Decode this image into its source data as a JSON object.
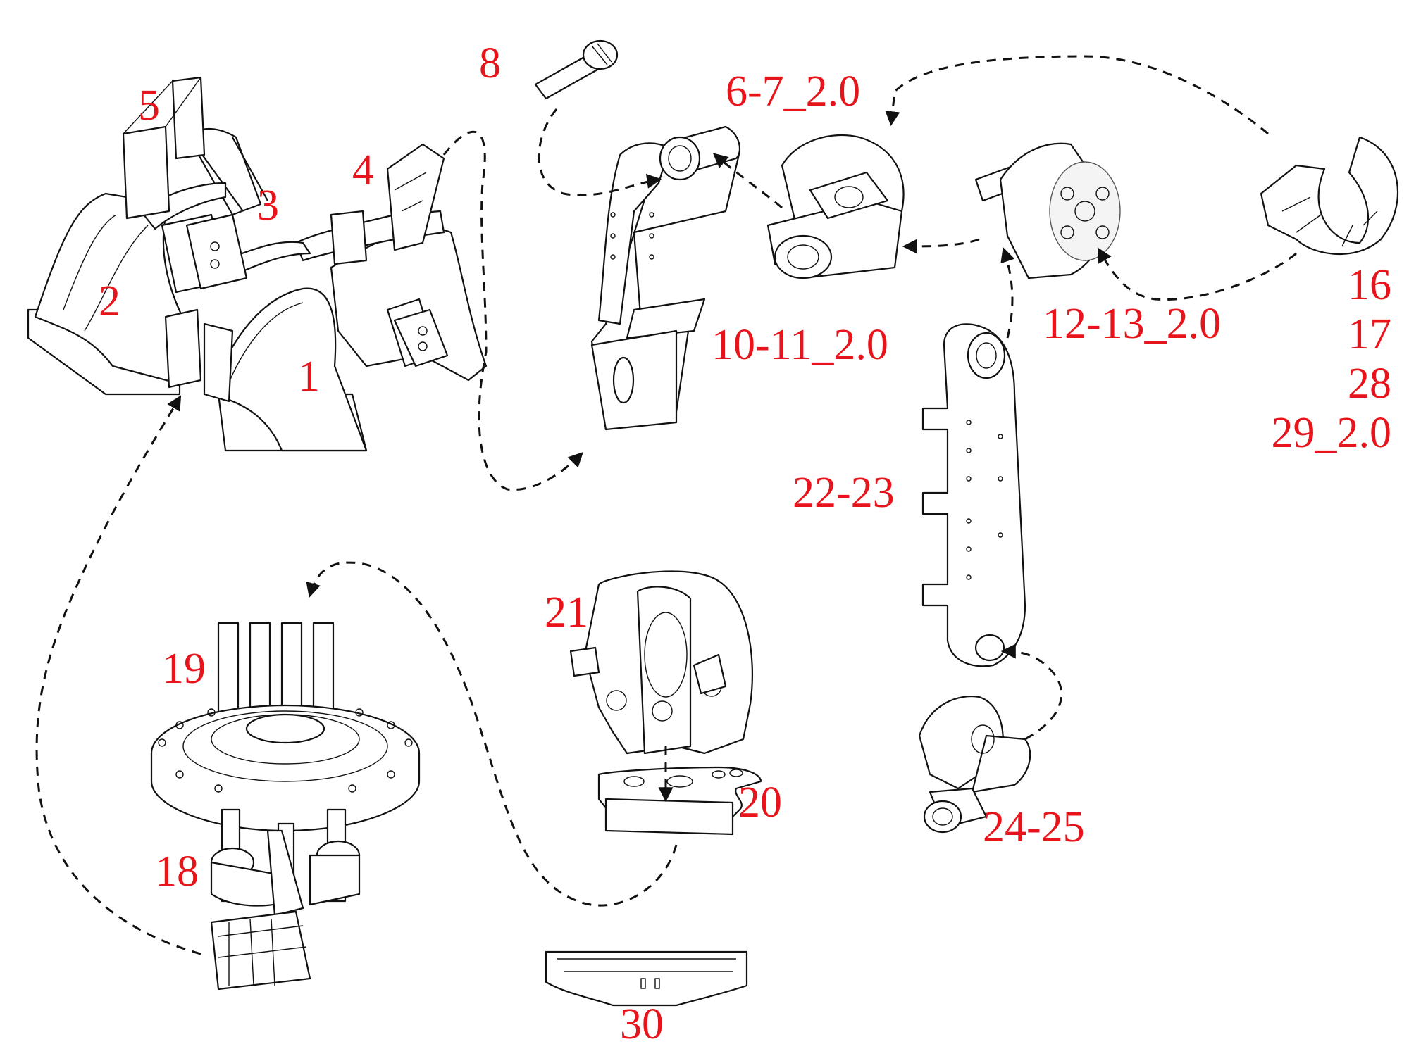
{
  "diagram": {
    "background": "#ffffff",
    "label_color": "#e8141b",
    "line_color": "#111111",
    "part_labels": {
      "p1": "1",
      "p2": "2",
      "p3": "3",
      "p4": "4",
      "p5": "5",
      "p8": "8",
      "p6_7": "6-7_2.0",
      "p10_11": "10-11_2.0",
      "p12_13": "12-13_2.0",
      "p16": "16",
      "p17": "17",
      "p28": "28",
      "p29": "29_2.0",
      "p22_23": "22-23",
      "p21": "21",
      "p20": "20",
      "p19": "19",
      "p18": "18",
      "p24_25": "24-25",
      "p30": "30"
    }
  }
}
